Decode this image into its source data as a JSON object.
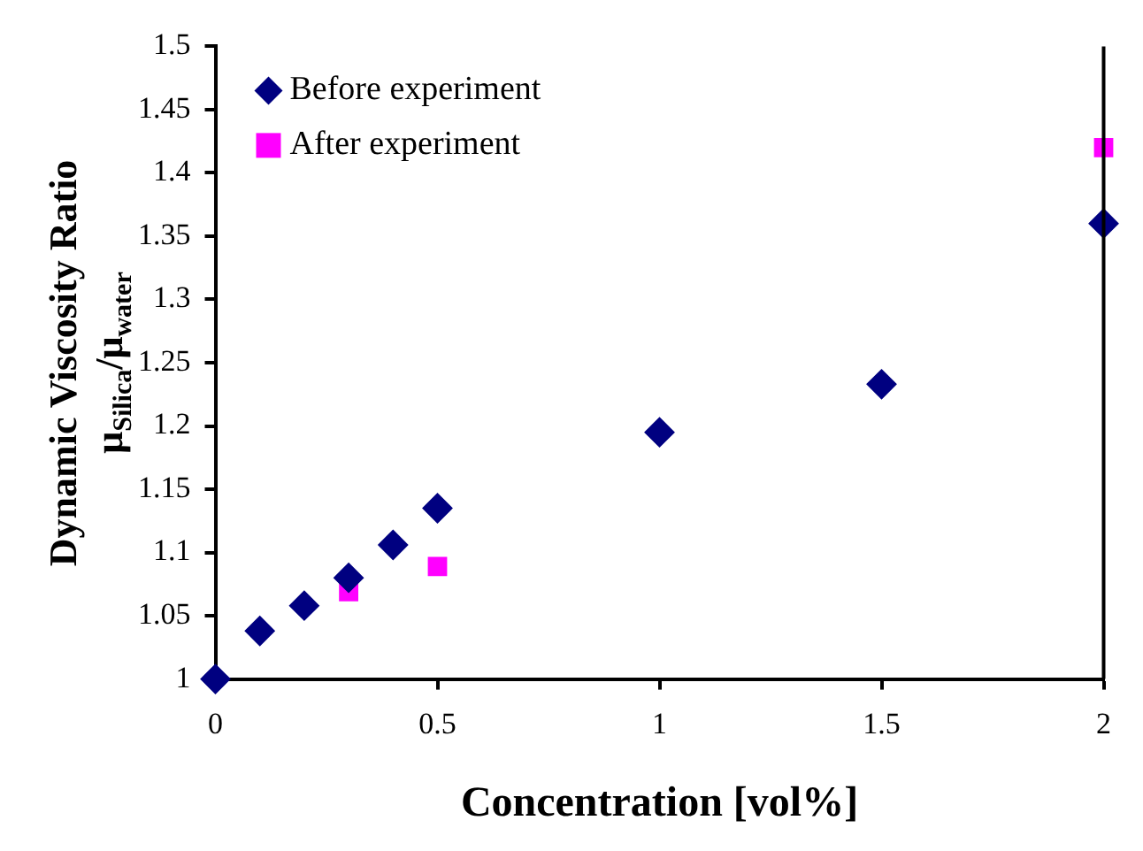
{
  "chart_data": {
    "type": "scatter",
    "xlabel": "Concentration [vol%]",
    "ylabel": "Dynamic Viscosity Ratio\nμ$_{Silica}$/μ$_{water}$",
    "xlim": [
      0,
      2
    ],
    "xticks": [
      0,
      0.5,
      1,
      1.5,
      2
    ],
    "ylim": [
      1,
      1.5
    ],
    "yticks": [
      1,
      1.05,
      1.1,
      1.15,
      1.2,
      1.25,
      1.3,
      1.35,
      1.4,
      1.45,
      1.5
    ],
    "grid": false,
    "legend": "top left",
    "series": [
      {
        "name": "Before experiment",
        "color": "#000080",
        "marker": "diamond",
        "x": [
          0,
          0.1,
          0.2,
          0.3,
          0.4,
          0.5,
          1,
          1.5,
          2
        ],
        "values": [
          1,
          1.038,
          1.058,
          1.08,
          1.106,
          1.135,
          1.195,
          1.233,
          1.36
        ]
      },
      {
        "name": "After experiment",
        "color": "#ff00ff",
        "marker": "square",
        "x": [
          0.3,
          0.5,
          2
        ],
        "values": [
          1.069,
          1.089,
          1.42
        ]
      }
    ]
  }
}
